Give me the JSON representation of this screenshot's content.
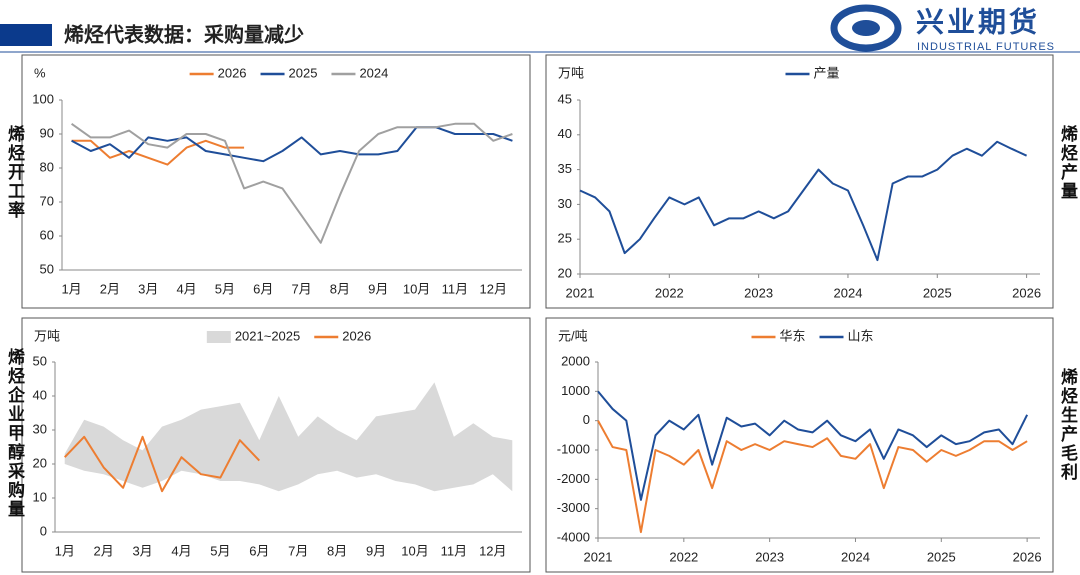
{
  "header": {
    "title": "烯烃代表数据：采购量减少",
    "logo_cn": "兴业期货",
    "logo_en": "INDUSTRIAL FUTURES"
  },
  "chart_data": [
    {
      "type": "line",
      "side_label": "烯烃开工率",
      "y_label": "%",
      "categories": [
        "1月",
        null,
        "2月",
        null,
        "3月",
        null,
        "4月",
        null,
        "5月",
        null,
        "6月",
        null,
        "7月",
        null,
        "8月",
        null,
        "9月",
        null,
        "10月",
        null,
        "11月",
        null,
        "12月",
        null
      ],
      "ylim": [
        50,
        100
      ],
      "yticks": [
        50,
        60,
        70,
        80,
        90,
        100
      ],
      "series": [
        {
          "name": "2026",
          "color": "#ed7d31",
          "values": [
            88,
            88,
            83,
            85,
            83,
            81,
            86,
            88,
            86,
            86,
            null,
            null,
            null,
            null,
            null,
            null,
            null,
            null,
            null,
            null,
            null,
            null,
            null,
            null
          ]
        },
        {
          "name": "2025",
          "color": "#1f4e99",
          "values": [
            88,
            85,
            87,
            83,
            89,
            88,
            89,
            85,
            84,
            83,
            82,
            85,
            89,
            84,
            85,
            84,
            84,
            85,
            92,
            92,
            90,
            90,
            90,
            88
          ]
        },
        {
          "name": "2024",
          "color": "#a0a0a0",
          "values": [
            93,
            89,
            89,
            91,
            87,
            86,
            90,
            90,
            88,
            74,
            76,
            74,
            66,
            58,
            72,
            85,
            90,
            92,
            92,
            92,
            93,
            93,
            88,
            90
          ]
        }
      ]
    },
    {
      "type": "line",
      "side_label": "烯烃产量",
      "y_label": "万吨",
      "x": [
        2021,
        2021.17,
        2021.33,
        2021.5,
        2021.67,
        2021.83,
        2022,
        2022.17,
        2022.33,
        2022.5,
        2022.67,
        2022.83,
        2023,
        2023.17,
        2023.33,
        2023.5,
        2023.67,
        2023.83,
        2024,
        2024.17,
        2024.33,
        2024.5,
        2024.67,
        2024.83,
        2025,
        2025.17,
        2025.33,
        2025.5,
        2025.67,
        2025.83,
        2026
      ],
      "xlim": [
        2021,
        2026.15
      ],
      "xticks": [
        2021,
        2022,
        2023,
        2024,
        2025,
        2026
      ],
      "ylim": [
        20,
        45
      ],
      "yticks": [
        20,
        25,
        30,
        35,
        40,
        45
      ],
      "series": [
        {
          "name": "产量",
          "color": "#1f4e99",
          "values": [
            32,
            31,
            29,
            23,
            25,
            28,
            31,
            30,
            31,
            27,
            28,
            28,
            29,
            28,
            29,
            32,
            35,
            33,
            32,
            27,
            22,
            33,
            34,
            34,
            35,
            37,
            38,
            37,
            39,
            38,
            37
          ]
        }
      ]
    },
    {
      "type": "area",
      "side_label": "烯烃企业甲醇采购量",
      "y_label": "万吨",
      "categories": [
        "1月",
        null,
        "2月",
        null,
        "3月",
        null,
        "4月",
        null,
        "5月",
        null,
        "6月",
        null,
        "7月",
        null,
        "8月",
        null,
        "9月",
        null,
        "10月",
        null,
        "11月",
        null,
        "12月",
        null
      ],
      "ylim": [
        0,
        50
      ],
      "yticks": [
        0,
        10,
        20,
        30,
        40,
        50
      ],
      "series": [
        {
          "name": "2021~2025",
          "color": "#d9d9d9",
          "low": [
            20,
            18,
            17,
            15,
            13,
            15,
            18,
            17,
            15,
            15,
            14,
            12,
            14,
            17,
            18,
            16,
            17,
            15,
            14,
            12,
            13,
            14,
            17,
            12
          ],
          "high": [
            23,
            33,
            31,
            27,
            24,
            31,
            33,
            36,
            37,
            38,
            27,
            40,
            28,
            34,
            30,
            27,
            34,
            35,
            36,
            44,
            28,
            32,
            28,
            27
          ]
        },
        {
          "name": "2026",
          "color": "#ed7d31",
          "values": [
            22,
            28,
            19,
            13,
            28,
            12,
            22,
            17,
            16,
            27,
            21,
            null,
            null,
            null,
            null,
            null,
            null,
            null,
            null,
            null,
            null,
            null,
            null,
            null
          ]
        }
      ]
    },
    {
      "type": "line",
      "side_label": "烯烃生产毛利",
      "y_label": "元/吨",
      "x": [
        2021,
        2021.17,
        2021.33,
        2021.5,
        2021.67,
        2021.83,
        2022,
        2022.17,
        2022.33,
        2022.5,
        2022.67,
        2022.83,
        2023,
        2023.17,
        2023.33,
        2023.5,
        2023.67,
        2023.83,
        2024,
        2024.17,
        2024.33,
        2024.5,
        2024.67,
        2024.83,
        2025,
        2025.17,
        2025.33,
        2025.5,
        2025.67,
        2025.83,
        2026
      ],
      "xlim": [
        2021,
        2026.15
      ],
      "xticks": [
        2021,
        2022,
        2023,
        2024,
        2025,
        2026
      ],
      "ylim": [
        -4000,
        2000
      ],
      "yticks": [
        -4000,
        -3000,
        -2000,
        -1000,
        0,
        1000,
        2000
      ],
      "series": [
        {
          "name": "华东",
          "color": "#ed7d31",
          "values": [
            0,
            -900,
            -1000,
            -3800,
            -1000,
            -1200,
            -1500,
            -1000,
            -2300,
            -700,
            -1000,
            -800,
            -1000,
            -700,
            -800,
            -900,
            -600,
            -1200,
            -1300,
            -800,
            -2300,
            -900,
            -1000,
            -1400,
            -1000,
            -1200,
            -1000,
            -700,
            -700,
            -1000,
            -700
          ]
        },
        {
          "name": "山东",
          "color": "#1f4e99",
          "values": [
            1000,
            400,
            0,
            -2700,
            -500,
            0,
            -300,
            200,
            -1500,
            100,
            -200,
            -100,
            -500,
            0,
            -300,
            -400,
            0,
            -500,
            -700,
            -300,
            -1300,
            -300,
            -500,
            -900,
            -500,
            -800,
            -700,
            -400,
            -300,
            -800,
            200
          ]
        }
      ]
    }
  ]
}
